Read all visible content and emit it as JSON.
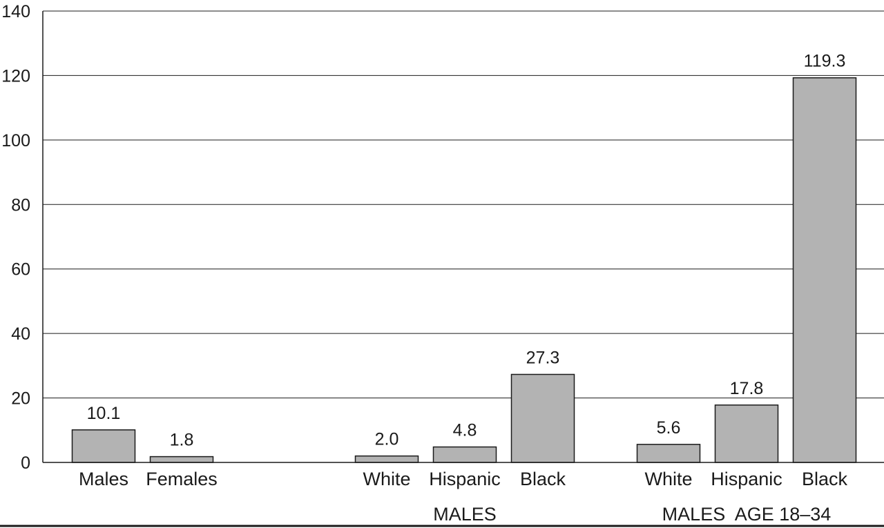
{
  "chart_data": {
    "type": "bar",
    "ylim": [
      0,
      140
    ],
    "yticks": [
      "0",
      "20",
      "40",
      "60",
      "80",
      "100",
      "120",
      "140"
    ],
    "grid": true,
    "bar_color": "#b3b3b3",
    "groups": [
      {
        "label": "",
        "categories": [
          "Males",
          "Females"
        ],
        "values": [
          10.1,
          1.8
        ],
        "value_labels": [
          "10.1",
          "1.8"
        ]
      },
      {
        "label": "MALES",
        "categories": [
          "White",
          "Hispanic",
          "Black"
        ],
        "values": [
          2.0,
          4.8,
          27.3
        ],
        "value_labels": [
          "2.0",
          "4.8",
          "27.3"
        ]
      },
      {
        "label": "MALES  AGE 18–34",
        "categories": [
          "White",
          "Hispanic",
          "Black"
        ],
        "values": [
          5.6,
          17.8,
          119.3
        ],
        "value_labels": [
          "5.6",
          "17.8",
          "119.3"
        ]
      }
    ]
  }
}
